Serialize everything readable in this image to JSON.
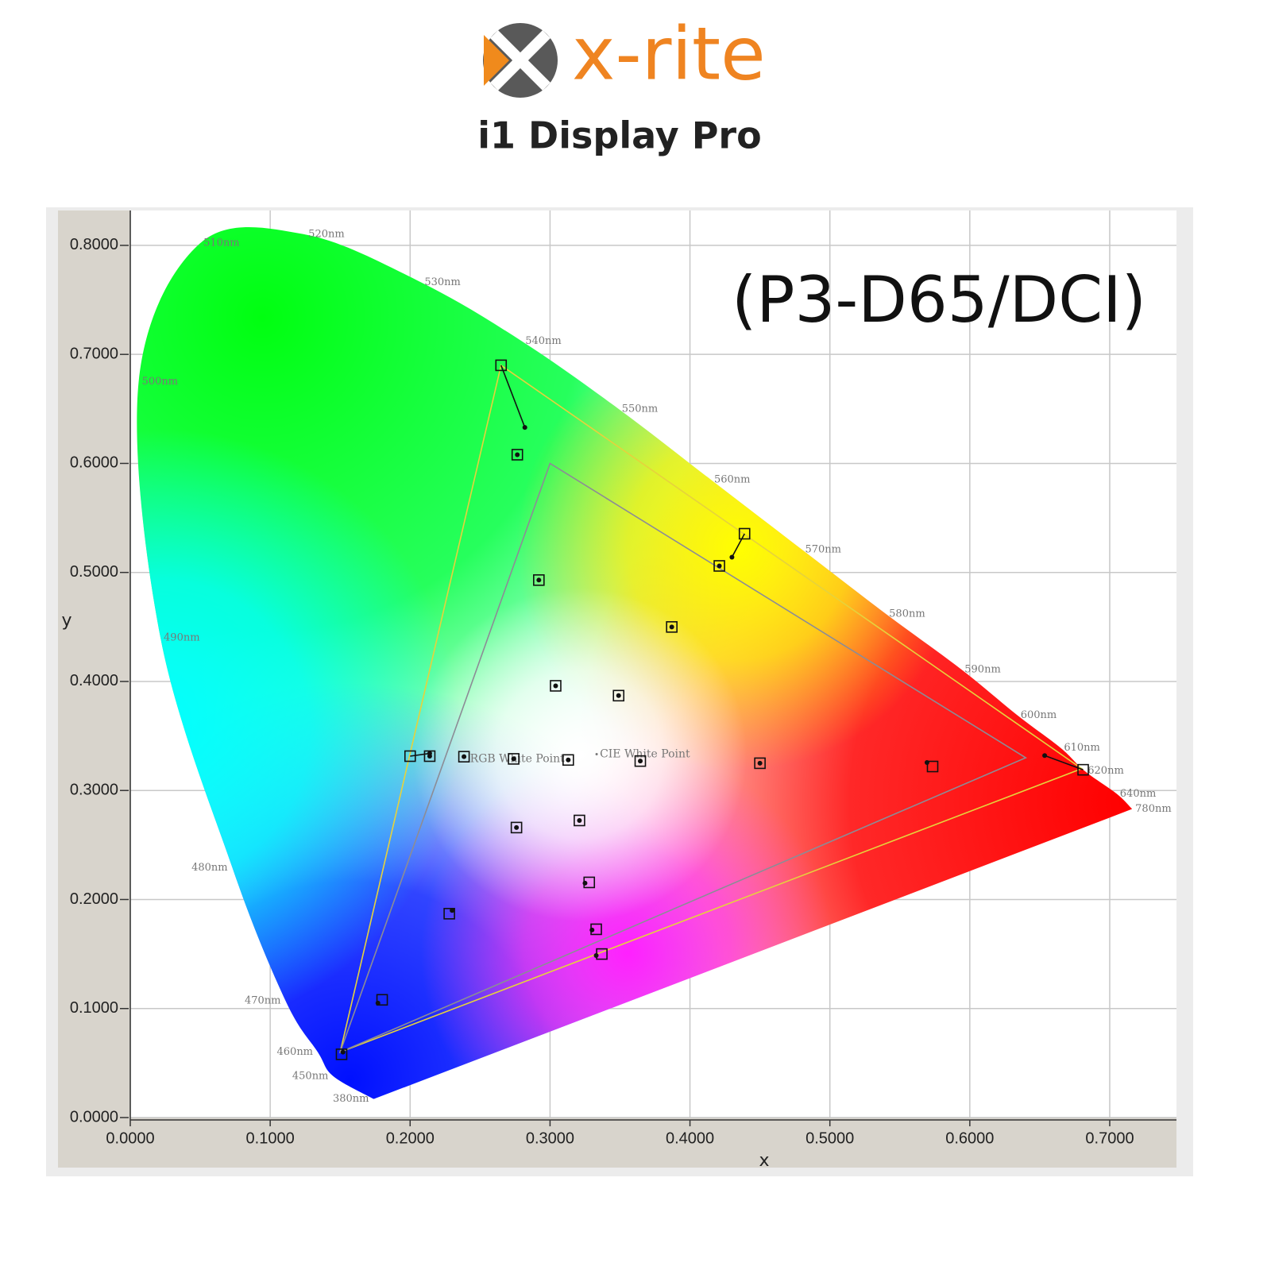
{
  "header": {
    "brand": "x-rite",
    "product": "i1 Display Pro"
  },
  "chart_data": {
    "type": "chromaticity",
    "title": "(P3-D65/DCI)",
    "x_label": "x",
    "y_label": "y",
    "xlim": [
      0,
      0.7477
    ],
    "ylim": [
      0,
      0.832
    ],
    "xticks": [
      {
        "value": 0,
        "label": "0.0000"
      },
      {
        "value": 0.1,
        "label": "0.1000"
      },
      {
        "value": 0.2,
        "label": "0.2000"
      },
      {
        "value": 0.3,
        "label": "0.3000"
      },
      {
        "value": 0.4,
        "label": "0.4000"
      },
      {
        "value": 0.5,
        "label": "0.5000"
      },
      {
        "value": 0.6,
        "label": "0.6000"
      },
      {
        "value": 0.7,
        "label": "0.7000"
      }
    ],
    "yticks": [
      {
        "value": 0,
        "label": "0.0000"
      },
      {
        "value": 0.1,
        "label": "0.1000"
      },
      {
        "value": 0.2,
        "label": "0.2000"
      },
      {
        "value": 0.3,
        "label": "0.3000"
      },
      {
        "value": 0.4,
        "label": "0.4000"
      },
      {
        "value": 0.5,
        "label": "0.5000"
      },
      {
        "value": 0.6,
        "label": "0.6000"
      },
      {
        "value": 0.7,
        "label": "0.7000"
      },
      {
        "value": 0.8,
        "label": "0.8000"
      }
    ],
    "grid": true,
    "locus": {
      "labels": [
        "380nm",
        "450nm",
        "460nm",
        "470nm",
        "480nm",
        "490nm",
        "500nm",
        "510nm",
        "520nm",
        "530nm",
        "540nm",
        "550nm",
        "560nm",
        "570nm",
        "580nm",
        "590nm",
        "600nm",
        "610nm",
        "620nm",
        "640nm",
        "780nm"
      ],
      "x": [
        0.174,
        0.145,
        0.134,
        0.111,
        0.073,
        0.0216,
        0.006,
        0.05,
        0.125,
        0.208,
        0.28,
        0.349,
        0.415,
        0.48,
        0.54,
        0.594,
        0.634,
        0.665,
        0.682,
        0.705,
        0.716
      ],
      "y": [
        0.017,
        0.038,
        0.06,
        0.107,
        0.229,
        0.44,
        0.675,
        0.802,
        0.81,
        0.766,
        0.712,
        0.65,
        0.585,
        0.521,
        0.462,
        0.411,
        0.369,
        0.339,
        0.318,
        0.297,
        0.283
      ]
    },
    "gamuts": [
      {
        "color": "#e6d23c",
        "x": [
          0.68,
          0.265,
          0.15
        ],
        "y": [
          0.32,
          0.69,
          0.06
        ]
      },
      {
        "color": "#8c8c96",
        "x": [
          0.64,
          0.3,
          0.15
        ],
        "y": [
          0.33,
          0.6,
          0.06
        ]
      }
    ],
    "targets": {
      "x": [
        0.265,
        0.2766,
        0.439,
        0.421,
        0.292,
        0.387,
        0.304,
        0.349,
        0.2,
        0.214,
        0.2385,
        0.274,
        0.313,
        0.3645,
        0.45,
        0.5734,
        0.681,
        0.276,
        0.321,
        0.328,
        0.228,
        0.333,
        0.337,
        0.18,
        0.151
      ],
      "y": [
        0.69,
        0.608,
        0.5355,
        0.506,
        0.493,
        0.45,
        0.396,
        0.387,
        0.3315,
        0.3315,
        0.331,
        0.329,
        0.328,
        0.327,
        0.325,
        0.322,
        0.319,
        0.266,
        0.2725,
        0.2157,
        0.187,
        0.1727,
        0.15,
        0.108,
        0.058
      ]
    },
    "measured": {
      "x": [
        0.282,
        0.2766,
        0.43,
        0.421,
        0.292,
        0.387,
        0.304,
        0.349,
        0.214,
        0.214,
        0.2385,
        0.274,
        0.313,
        0.3645,
        0.45,
        0.5694,
        0.6535,
        0.276,
        0.321,
        0.325,
        0.23,
        0.33,
        0.333,
        0.177,
        0.152
      ],
      "y": [
        0.633,
        0.608,
        0.514,
        0.506,
        0.493,
        0.45,
        0.396,
        0.387,
        0.334,
        0.3315,
        0.331,
        0.329,
        0.328,
        0.327,
        0.325,
        0.3257,
        0.332,
        0.266,
        0.2725,
        0.215,
        0.19,
        0.172,
        0.1486,
        0.105,
        0.06
      ]
    },
    "white_points": [
      {
        "label": "RGB White Point",
        "x": 0.3127,
        "y": 0.329
      },
      {
        "label": "CIE White Point",
        "x": 0.3333,
        "y": 0.3333
      }
    ]
  }
}
